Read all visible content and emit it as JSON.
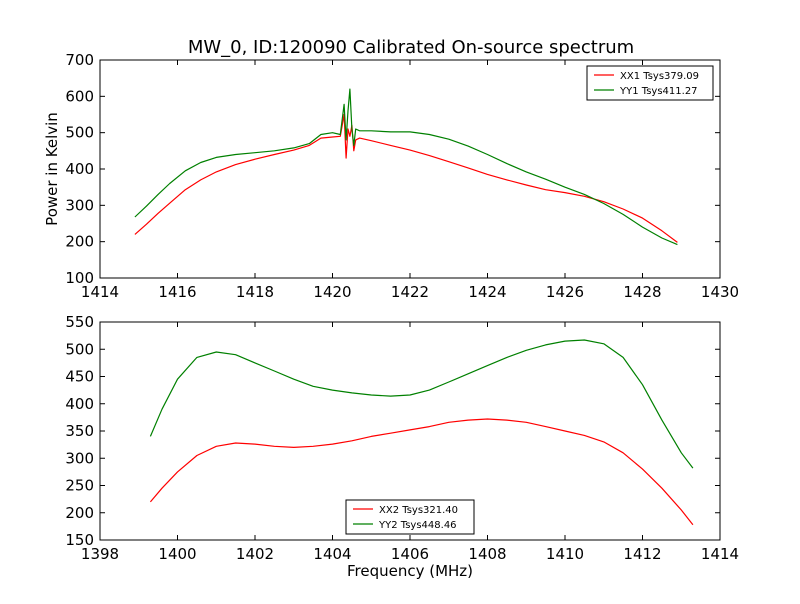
{
  "figure": {
    "title": "MW_0, ID:120090 Calibrated On-source spectrum"
  },
  "chart_data": [
    {
      "type": "line",
      "title": "MW_0, ID:120090 Calibrated On-source spectrum",
      "xlabel": "",
      "ylabel": "Power in Kelvin",
      "xlim": [
        1414,
        1430
      ],
      "ylim": [
        100,
        700
      ],
      "xticks": [
        1414,
        1416,
        1418,
        1420,
        1422,
        1424,
        1426,
        1428,
        1430
      ],
      "yticks": [
        100,
        200,
        300,
        400,
        500,
        600,
        700
      ],
      "grid": false,
      "legend_position": "top-right",
      "series": [
        {
          "name": "XX1 Tsys379.09",
          "color": "#ff0000",
          "x": [
            1414.9,
            1415.2,
            1415.5,
            1415.8,
            1416.2,
            1416.6,
            1417.0,
            1417.5,
            1418.0,
            1418.5,
            1419.0,
            1419.4,
            1419.7,
            1420.0,
            1420.2,
            1420.3,
            1420.35,
            1420.4,
            1420.45,
            1420.5,
            1420.55,
            1420.6,
            1420.7,
            1421.0,
            1421.5,
            1422.0,
            1422.5,
            1423.0,
            1423.5,
            1424.0,
            1424.5,
            1425.0,
            1425.5,
            1426.0,
            1426.5,
            1427.0,
            1427.5,
            1428.0,
            1428.5,
            1428.9
          ],
          "y": [
            220,
            248,
            278,
            306,
            343,
            370,
            392,
            412,
            427,
            440,
            452,
            465,
            485,
            488,
            490,
            550,
            430,
            510,
            490,
            520,
            450,
            480,
            485,
            478,
            465,
            452,
            437,
            420,
            403,
            385,
            370,
            356,
            343,
            335,
            325,
            310,
            290,
            265,
            230,
            198
          ]
        },
        {
          "name": "YY1 Tsys411.27",
          "color": "#008000",
          "x": [
            1414.9,
            1415.2,
            1415.5,
            1415.8,
            1416.2,
            1416.6,
            1417.0,
            1417.5,
            1418.0,
            1418.5,
            1419.0,
            1419.4,
            1419.7,
            1420.0,
            1420.2,
            1420.3,
            1420.35,
            1420.4,
            1420.45,
            1420.5,
            1420.55,
            1420.6,
            1420.7,
            1421.0,
            1421.5,
            1422.0,
            1422.5,
            1423.0,
            1423.5,
            1424.0,
            1424.5,
            1425.0,
            1425.5,
            1426.0,
            1426.5,
            1427.0,
            1427.5,
            1428.0,
            1428.5,
            1428.9
          ],
          "y": [
            268,
            298,
            330,
            360,
            395,
            418,
            432,
            440,
            445,
            450,
            458,
            470,
            495,
            500,
            495,
            578,
            480,
            560,
            620,
            510,
            465,
            510,
            505,
            505,
            502,
            502,
            495,
            482,
            463,
            440,
            415,
            392,
            372,
            350,
            330,
            305,
            275,
            240,
            210,
            192
          ]
        }
      ]
    },
    {
      "type": "line",
      "title": "",
      "xlabel": "Frequency (MHz)",
      "ylabel": "",
      "xlim": [
        1398,
        1414
      ],
      "ylim": [
        150,
        550
      ],
      "xticks": [
        1398,
        1400,
        1402,
        1404,
        1406,
        1408,
        1410,
        1412,
        1414
      ],
      "yticks": [
        150,
        200,
        250,
        300,
        350,
        400,
        450,
        500,
        550
      ],
      "grid": false,
      "legend_position": "bottom-center",
      "series": [
        {
          "name": "XX2 Tsys321.40",
          "color": "#ff0000",
          "x": [
            1399.3,
            1399.6,
            1400.0,
            1400.5,
            1401.0,
            1401.5,
            1402.0,
            1402.5,
            1403.0,
            1403.5,
            1404.0,
            1404.5,
            1405.0,
            1405.5,
            1406.0,
            1406.5,
            1407.0,
            1407.5,
            1408.0,
            1408.5,
            1409.0,
            1409.5,
            1410.0,
            1410.5,
            1411.0,
            1411.5,
            1412.0,
            1412.5,
            1413.0,
            1413.3
          ],
          "y": [
            220,
            245,
            275,
            305,
            322,
            328,
            326,
            322,
            320,
            322,
            326,
            332,
            340,
            346,
            352,
            358,
            366,
            370,
            372,
            370,
            366,
            358,
            350,
            342,
            330,
            310,
            280,
            245,
            205,
            178
          ]
        },
        {
          "name": "YY2 Tsys448.46",
          "color": "#008000",
          "x": [
            1399.3,
            1399.6,
            1400.0,
            1400.5,
            1401.0,
            1401.5,
            1402.0,
            1402.5,
            1403.0,
            1403.5,
            1404.0,
            1404.5,
            1405.0,
            1405.5,
            1406.0,
            1406.5,
            1407.0,
            1407.5,
            1408.0,
            1408.5,
            1409.0,
            1409.5,
            1410.0,
            1410.5,
            1411.0,
            1411.5,
            1412.0,
            1412.5,
            1413.0,
            1413.3
          ],
          "y": [
            340,
            390,
            445,
            485,
            495,
            490,
            475,
            460,
            445,
            432,
            425,
            420,
            416,
            414,
            416,
            425,
            440,
            455,
            470,
            485,
            498,
            508,
            515,
            517,
            510,
            485,
            435,
            370,
            310,
            282
          ]
        }
      ]
    }
  ]
}
